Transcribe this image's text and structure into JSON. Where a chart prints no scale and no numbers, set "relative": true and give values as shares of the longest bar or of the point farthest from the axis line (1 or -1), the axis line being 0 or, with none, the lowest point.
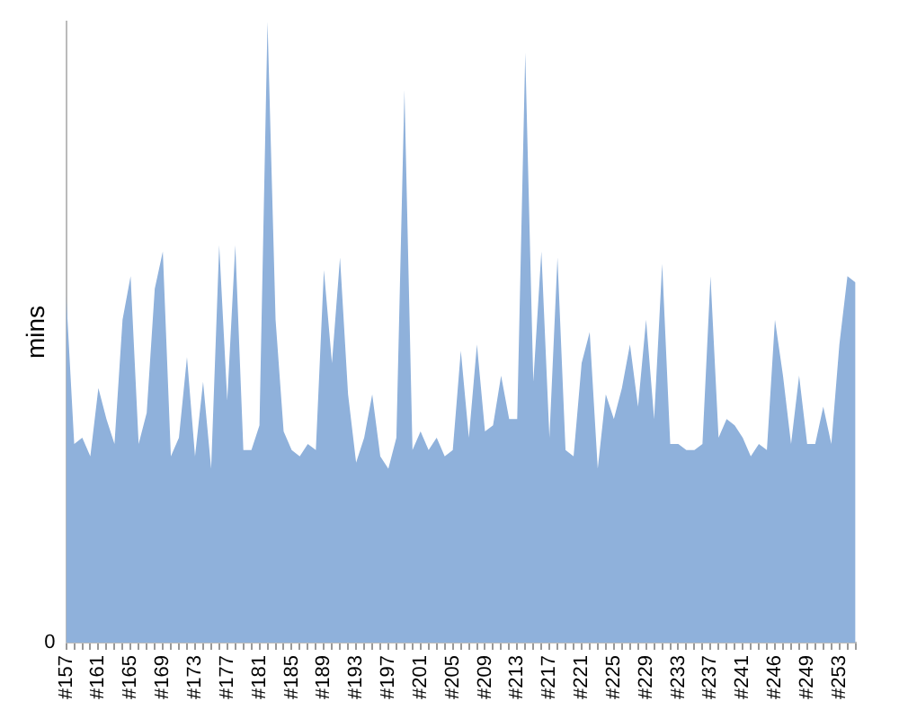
{
  "chart_data": {
    "type": "area",
    "ylabel": "mins",
    "relative": true,
    "annotations": [
      "0"
    ],
    "grid": false,
    "legend": false,
    "color": "#8fb1db",
    "categories": [
      "#157",
      null,
      null,
      null,
      "#161",
      null,
      null,
      null,
      "#165",
      null,
      null,
      null,
      "#169",
      null,
      null,
      null,
      "#173",
      null,
      null,
      null,
      "#177",
      null,
      null,
      null,
      "#181",
      null,
      null,
      null,
      "#185",
      null,
      null,
      null,
      "#189",
      null,
      null,
      null,
      "#193",
      null,
      null,
      null,
      "#197",
      null,
      null,
      null,
      "#201",
      null,
      null,
      null,
      "#205",
      null,
      null,
      null,
      "#209",
      null,
      null,
      null,
      "#213",
      null,
      null,
      null,
      "#217",
      null,
      null,
      null,
      "#221",
      null,
      null,
      null,
      "#225",
      null,
      null,
      null,
      "#229",
      null,
      null,
      null,
      "#233",
      null,
      null,
      null,
      "#237",
      null,
      null,
      null,
      "#241",
      null,
      null,
      null,
      "#246",
      null,
      null,
      null,
      "#249",
      null,
      null,
      null,
      "#253",
      null,
      null
    ],
    "values": [
      0.56,
      0.32,
      0.33,
      0.3,
      0.41,
      0.36,
      0.32,
      0.52,
      0.59,
      0.32,
      0.37,
      0.57,
      0.63,
      0.3,
      0.33,
      0.46,
      0.3,
      0.42,
      0.28,
      0.64,
      0.39,
      0.64,
      0.31,
      0.31,
      0.35,
      1,
      0.52,
      0.34,
      0.31,
      0.3,
      0.32,
      0.31,
      0.6,
      0.45,
      0.62,
      0.4,
      0.29,
      0.33,
      0.4,
      0.3,
      0.28,
      0.33,
      0.89,
      0.31,
      0.34,
      0.31,
      0.33,
      0.3,
      0.31,
      0.47,
      0.33,
      0.48,
      0.34,
      0.35,
      0.43,
      0.36,
      0.36,
      0.95,
      0.42,
      0.63,
      0.33,
      0.62,
      0.31,
      0.3,
      0.45,
      0.5,
      0.28,
      0.4,
      0.36,
      0.41,
      0.48,
      0.38,
      0.52,
      0.36,
      0.61,
      0.32,
      0.32,
      0.31,
      0.31,
      0.32,
      0.59,
      0.33,
      0.36,
      0.35,
      0.33,
      0.3,
      0.32,
      0.31,
      0.52,
      0.43,
      0.32,
      0.43,
      0.32,
      0.32,
      0.38,
      0.32,
      0.48,
      0.59,
      0.58
    ]
  }
}
